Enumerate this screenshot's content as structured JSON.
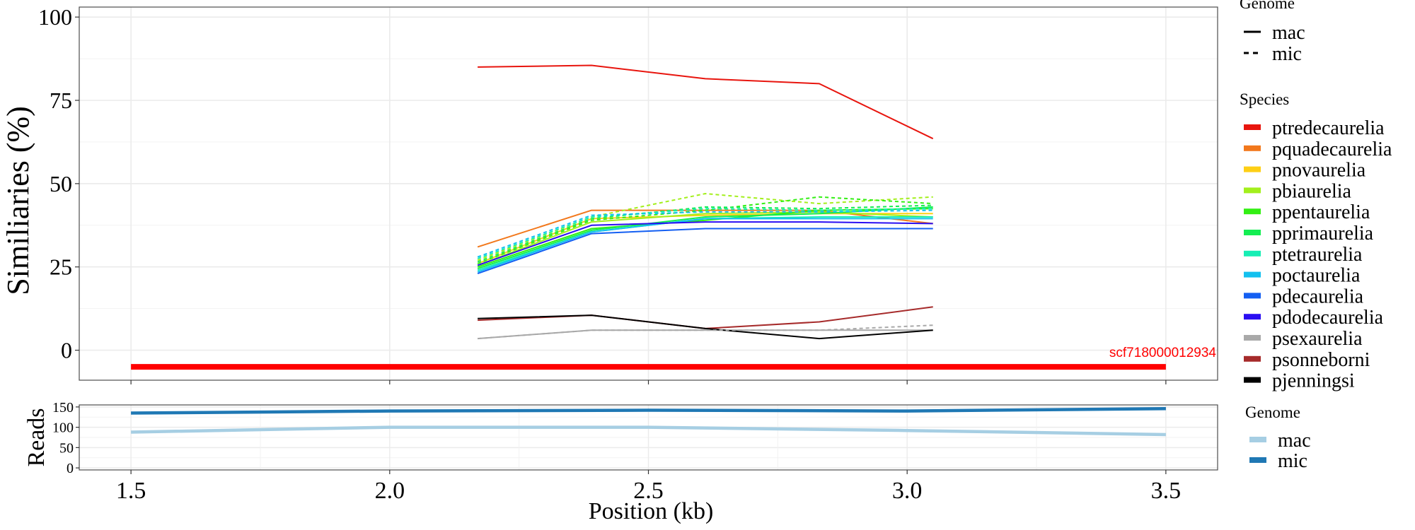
{
  "chart_data": [
    {
      "id": "similarity",
      "type": "line",
      "ylabel": "Similiaries (%)",
      "xlabel": "",
      "ylim": [
        -9,
        103
      ],
      "xlim": [
        1.4,
        3.6
      ],
      "yticks": [
        0,
        25,
        50,
        75,
        100
      ],
      "ytick_labels": [
        "0",
        "25",
        "50",
        "75",
        "100"
      ],
      "grid": true,
      "x": [
        2.17,
        2.39,
        2.61,
        2.83,
        3.05
      ],
      "series": [
        {
          "name": "ptredecaurelia",
          "genome": "mac",
          "color": "#e8150e",
          "values": [
            85,
            85.5,
            81.5,
            80,
            63.5
          ]
        },
        {
          "name": "pquadecaurelia",
          "genome": "mac",
          "color": "#f2781c",
          "values": [
            31,
            42,
            42,
            42,
            38
          ]
        },
        {
          "name": "pnovaurelia",
          "genome": "mac",
          "color": "#fecf15",
          "values": [
            26,
            39.5,
            40.5,
            41,
            41
          ]
        },
        {
          "name": "pbiaurelia",
          "genome": "mac",
          "color": "#a3ef1c",
          "values": [
            25.5,
            38.5,
            41,
            41.5,
            40
          ]
        },
        {
          "name": "pbiaurelia",
          "genome": "mic",
          "color": "#a3ef1c",
          "values": [
            27,
            40,
            47,
            44,
            46
          ]
        },
        {
          "name": "ppentaurelia",
          "genome": "mac",
          "color": "#33ef14",
          "values": [
            25,
            36.5,
            39,
            42,
            42.5
          ]
        },
        {
          "name": "ppentaurelia",
          "genome": "mic",
          "color": "#33ef14",
          "values": [
            26,
            39,
            42,
            46,
            44
          ]
        },
        {
          "name": "pprimaurelia",
          "genome": "mac",
          "color": "#14ee52",
          "values": [
            24.5,
            36,
            40,
            41,
            43
          ]
        },
        {
          "name": "pprimaurelia",
          "genome": "mic",
          "color": "#14ee52",
          "values": [
            26.5,
            39.5,
            43,
            42.5,
            43.5
          ]
        },
        {
          "name": "ptetraurelia",
          "genome": "mac",
          "color": "#16eeb4",
          "values": [
            24,
            35.5,
            39.5,
            40,
            40
          ]
        },
        {
          "name": "ptetraurelia",
          "genome": "mic",
          "color": "#16eeb4",
          "values": [
            27.5,
            40,
            42.5,
            42,
            42.5
          ]
        },
        {
          "name": "poctaurelia",
          "genome": "mac",
          "color": "#13c0ef",
          "values": [
            23.5,
            35.5,
            39.5,
            39.5,
            39.5
          ]
        },
        {
          "name": "poctaurelia",
          "genome": "mic",
          "color": "#13c0ef",
          "values": [
            28,
            40.5,
            41.5,
            41.5,
            42
          ]
        },
        {
          "name": "pdecaurelia",
          "genome": "mac",
          "color": "#145ff2",
          "values": [
            23,
            35,
            36.5,
            36.5,
            36.5
          ]
        },
        {
          "name": "pdodecaurelia",
          "genome": "mac",
          "color": "#2a0ef2",
          "values": [
            25.5,
            37.5,
            38.5,
            38.5,
            38
          ]
        },
        {
          "name": "psexaurelia",
          "genome": "mac",
          "color": "#a9a9a9",
          "values": [
            3.5,
            6,
            6,
            6,
            6
          ]
        },
        {
          "name": "psexaurelia",
          "genome": "mic",
          "color": "#a9a9a9",
          "values": [
            3.5,
            6,
            6,
            6,
            7.5
          ]
        },
        {
          "name": "psonneborni",
          "genome": "mac",
          "color": "#a62b2b",
          "values": [
            9,
            10.5,
            6.5,
            8.5,
            13
          ]
        },
        {
          "name": "pjenningsi",
          "genome": "mac",
          "color": "#000000",
          "values": [
            9.5,
            10.5,
            6.5,
            3.5,
            6
          ]
        }
      ],
      "annotations": [
        {
          "type": "segment",
          "label": "scf718000012934",
          "color": "#ff0000",
          "x_start": 1.5,
          "x_end": 3.5,
          "y": -5
        }
      ],
      "legends": [
        {
          "title": "Genome",
          "items": [
            {
              "label": "mac",
              "style": "solid"
            },
            {
              "label": "mic",
              "style": "dashed"
            }
          ]
        },
        {
          "title": "Species",
          "items": [
            {
              "label": "ptredecaurelia",
              "color": "#e8150e"
            },
            {
              "label": "pquadecaurelia",
              "color": "#f2781c"
            },
            {
              "label": "pnovaurelia",
              "color": "#fecf15"
            },
            {
              "label": "pbiaurelia",
              "color": "#a3ef1c"
            },
            {
              "label": "ppentaurelia",
              "color": "#33ef14"
            },
            {
              "label": "pprimaurelia",
              "color": "#14ee52"
            },
            {
              "label": "ptetraurelia",
              "color": "#16eeb4"
            },
            {
              "label": "poctaurelia",
              "color": "#13c0ef"
            },
            {
              "label": "pdecaurelia",
              "color": "#145ff2"
            },
            {
              "label": "pdodecaurelia",
              "color": "#2a0ef2"
            },
            {
              "label": "psexaurelia",
              "color": "#a9a9a9"
            },
            {
              "label": "psonneborni",
              "color": "#a62b2b"
            },
            {
              "label": "pjenningsi",
              "color": "#000000"
            }
          ]
        }
      ],
      "legend_position": "right"
    },
    {
      "id": "reads",
      "type": "line",
      "ylabel": "Reads",
      "xlabel": "Position (kb)",
      "ylim": [
        -5,
        155
      ],
      "xlim": [
        1.4,
        3.6
      ],
      "yticks": [
        0,
        50,
        100,
        150
      ],
      "ytick_labels": [
        "0",
        "50",
        "100",
        "150"
      ],
      "xticks": [
        1.5,
        2.0,
        2.5,
        3.0,
        3.5
      ],
      "xtick_labels": [
        "1.5",
        "2.0",
        "2.5",
        "3.0",
        "3.5"
      ],
      "grid": true,
      "x": [
        1.5,
        2.0,
        2.5,
        3.0,
        3.5
      ],
      "series": [
        {
          "name": "mac",
          "color": "#a6cee3",
          "values": [
            88,
            100,
            100,
            92,
            82
          ]
        },
        {
          "name": "mic",
          "color": "#1f78b4",
          "values": [
            135,
            140,
            142,
            140,
            146
          ]
        }
      ],
      "legends": [
        {
          "title": "Genome",
          "items": [
            {
              "label": "mac",
              "color": "#a6cee3"
            },
            {
              "label": "mic",
              "color": "#1f78b4"
            }
          ]
        }
      ],
      "legend_position": "right"
    }
  ]
}
